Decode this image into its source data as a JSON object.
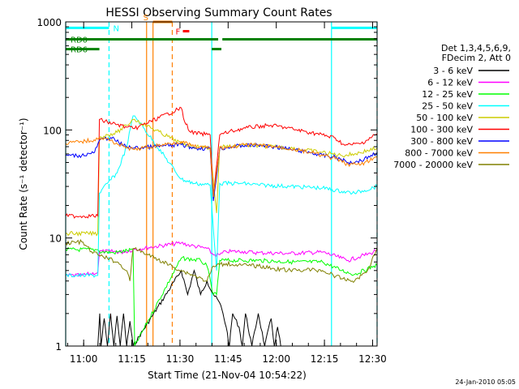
{
  "chart_data": {
    "type": "line",
    "title": "HESSI Observing Summary Count Rates",
    "xlabel": "Start Time (21-Nov-04 10:54:22)",
    "ylabel": "Count Rate (s⁻¹ detector⁻¹)",
    "yscale": "log",
    "ylim": [
      1,
      1000
    ],
    "xlim_minutes_after_start": [
      0,
      97
    ],
    "xticks": [
      {
        "label": "11:00",
        "t": 5.6
      },
      {
        "label": "11:15",
        "t": 20.6
      },
      {
        "label": "11:30",
        "t": 35.6
      },
      {
        "label": "11:45",
        "t": 50.6
      },
      {
        "label": "12:00",
        "t": 65.6
      },
      {
        "label": "12:15",
        "t": 80.6
      },
      {
        "label": "12:30",
        "t": 95.6
      }
    ],
    "yticks": [
      {
        "label": "1",
        "v": 1
      },
      {
        "label": "10",
        "v": 10
      },
      {
        "label": "100",
        "v": 100
      },
      {
        "label": "1000",
        "v": 1000
      }
    ],
    "legend_header": [
      "Det 1,3,4,5,6,9,",
      "FDecim 2, Att 0"
    ],
    "legend_position": "right",
    "series": [
      {
        "name": "3 - 6 keV",
        "color": "#000000",
        "points": [
          [
            10,
            1
          ],
          [
            10.6,
            2
          ],
          [
            11,
            1
          ],
          [
            12,
            1.8
          ],
          [
            13,
            1
          ],
          [
            14,
            2
          ],
          [
            15,
            1
          ],
          [
            16,
            1.9
          ],
          [
            17,
            1
          ],
          [
            18,
            2
          ],
          [
            19,
            1
          ],
          [
            20,
            1.7
          ],
          [
            21,
            1
          ],
          [
            36,
            5
          ],
          [
            38,
            3
          ],
          [
            40,
            5
          ],
          [
            42,
            3
          ],
          [
            44,
            4
          ],
          [
            46,
            3
          ],
          [
            48,
            2.5
          ],
          [
            49,
            2
          ],
          [
            50,
            1.5
          ],
          [
            51,
            1
          ],
          [
            52,
            2
          ],
          [
            54,
            1.5
          ],
          [
            55,
            1
          ],
          [
            56,
            2
          ],
          [
            58,
            1
          ],
          [
            60,
            2
          ],
          [
            62,
            1
          ],
          [
            64,
            1.8
          ],
          [
            65,
            1
          ],
          [
            66,
            1.5
          ],
          [
            67,
            1
          ]
        ]
      },
      {
        "name": "6 - 12 keV",
        "color": "#ff00ff",
        "points": [
          [
            0,
            4.5
          ],
          [
            5,
            4.5
          ],
          [
            10,
            4.8
          ],
          [
            10.5,
            7.5
          ],
          [
            14,
            7.5
          ],
          [
            18,
            7.4
          ],
          [
            21,
            7.8
          ],
          [
            36,
            9
          ],
          [
            39,
            8.5
          ],
          [
            44,
            8
          ],
          [
            46,
            7
          ],
          [
            48,
            7
          ],
          [
            50,
            7.5
          ],
          [
            55,
            7.5
          ],
          [
            60,
            7.3
          ],
          [
            70,
            7.2
          ],
          [
            80,
            7.4
          ],
          [
            86,
            6.5
          ],
          [
            88,
            6.2
          ],
          [
            92,
            6.8
          ],
          [
            95,
            7.2
          ],
          [
            97,
            7.8
          ]
        ]
      },
      {
        "name": "12 - 25 keV",
        "color": "#00ff00",
        "points": [
          [
            0,
            7.8
          ],
          [
            10,
            7.8
          ],
          [
            10.5,
            7.5
          ],
          [
            15,
            7.3
          ],
          [
            21,
            7.8
          ],
          [
            21.5,
            1
          ],
          [
            36,
            6.5
          ],
          [
            42,
            6.2
          ],
          [
            44,
            5.5
          ],
          [
            46,
            3
          ],
          [
            47,
            3
          ],
          [
            48,
            6.2
          ],
          [
            60,
            6.2
          ],
          [
            70,
            6
          ],
          [
            80,
            6
          ],
          [
            86,
            5
          ],
          [
            90,
            4.6
          ],
          [
            96,
            5.5
          ],
          [
            97,
            5.6
          ]
        ]
      },
      {
        "name": "25 - 50 keV",
        "color": "#00ffff",
        "points": [
          [
            0,
            4.5
          ],
          [
            10,
            4.5
          ],
          [
            10.5,
            26
          ],
          [
            13,
            32
          ],
          [
            16,
            40
          ],
          [
            19,
            70
          ],
          [
            21,
            135
          ],
          [
            21.5,
            135
          ],
          [
            36,
            35
          ],
          [
            40,
            32
          ],
          [
            45,
            31
          ],
          [
            47,
            5
          ],
          [
            48,
            32
          ],
          [
            55,
            32
          ],
          [
            60,
            31
          ],
          [
            70,
            30
          ],
          [
            80,
            29
          ],
          [
            86,
            27
          ],
          [
            90,
            26
          ],
          [
            97,
            30
          ]
        ]
      },
      {
        "name": "50 - 100 keV",
        "color": "#cccc00",
        "points": [
          [
            0,
            11
          ],
          [
            10,
            11
          ],
          [
            10.5,
            85
          ],
          [
            13,
            90
          ],
          [
            16,
            95
          ],
          [
            19,
            110
          ],
          [
            21,
            125
          ],
          [
            21.5,
            125
          ],
          [
            36,
            75
          ],
          [
            40,
            70
          ],
          [
            45,
            68
          ],
          [
            47,
            17
          ],
          [
            48,
            70
          ],
          [
            55,
            72
          ],
          [
            60,
            71
          ],
          [
            65,
            70
          ],
          [
            70,
            68
          ],
          [
            80,
            62
          ],
          [
            86,
            58
          ],
          [
            90,
            60
          ],
          [
            97,
            68
          ]
        ]
      },
      {
        "name": "100 - 300 keV",
        "color": "#ff0000",
        "points": [
          [
            0,
            16
          ],
          [
            10,
            16
          ],
          [
            10.5,
            125
          ],
          [
            13,
            118
          ],
          [
            16,
            112
          ],
          [
            19,
            106
          ],
          [
            21,
            103
          ],
          [
            21.5,
            103
          ],
          [
            36,
            160
          ],
          [
            37,
            120
          ],
          [
            39,
            95
          ],
          [
            42,
            92
          ],
          [
            45,
            90
          ],
          [
            46,
            25
          ],
          [
            48,
            90
          ],
          [
            52,
            98
          ],
          [
            56,
            104
          ],
          [
            60,
            108
          ],
          [
            64,
            110
          ],
          [
            68,
            106
          ],
          [
            72,
            100
          ],
          [
            76,
            95
          ],
          [
            80,
            90
          ],
          [
            84,
            84
          ],
          [
            87,
            72
          ],
          [
            92,
            75
          ],
          [
            97,
            92
          ]
        ]
      },
      {
        "name": "300 - 800 keV",
        "color": "#0000ff",
        "points": [
          [
            0,
            58
          ],
          [
            5,
            58
          ],
          [
            9,
            62
          ],
          [
            10.5,
            80
          ],
          [
            14,
            85
          ],
          [
            18,
            72
          ],
          [
            21,
            68
          ],
          [
            21.5,
            68
          ],
          [
            36,
            73
          ],
          [
            40,
            68
          ],
          [
            45,
            67
          ],
          [
            46,
            22
          ],
          [
            48,
            67
          ],
          [
            52,
            70
          ],
          [
            56,
            72
          ],
          [
            60,
            72
          ],
          [
            65,
            70
          ],
          [
            70,
            66
          ],
          [
            76,
            62
          ],
          [
            80,
            58
          ],
          [
            84,
            56
          ],
          [
            88,
            50
          ],
          [
            92,
            52
          ],
          [
            97,
            62
          ]
        ]
      },
      {
        "name": "800 - 7000 keV",
        "color": "#ff8000",
        "points": [
          [
            0,
            75
          ],
          [
            5,
            78
          ],
          [
            10,
            82
          ],
          [
            10.5,
            85
          ],
          [
            14,
            80
          ],
          [
            18,
            70
          ],
          [
            21,
            66
          ],
          [
            21.5,
            66
          ],
          [
            36,
            78
          ],
          [
            40,
            70
          ],
          [
            45,
            68
          ],
          [
            46,
            24
          ],
          [
            48,
            68
          ],
          [
            52,
            70
          ],
          [
            56,
            73
          ],
          [
            60,
            72
          ],
          [
            65,
            70
          ],
          [
            70,
            67
          ],
          [
            76,
            62
          ],
          [
            80,
            58
          ],
          [
            84,
            54
          ],
          [
            88,
            48
          ],
          [
            92,
            48
          ],
          [
            97,
            56
          ]
        ]
      },
      {
        "name": "7000 - 20000 keV",
        "color": "#808000",
        "points": [
          [
            0,
            9
          ],
          [
            5,
            9.2
          ],
          [
            8,
            7.5
          ],
          [
            10,
            7
          ],
          [
            13,
            6.5
          ],
          [
            16,
            6
          ],
          [
            19,
            5
          ],
          [
            20,
            4
          ],
          [
            21,
            8
          ],
          [
            21.5,
            8
          ],
          [
            36,
            5
          ],
          [
            40,
            4.5
          ],
          [
            44,
            4
          ],
          [
            46,
            5.5
          ],
          [
            50,
            5.8
          ],
          [
            55,
            5.6
          ],
          [
            60,
            5.5
          ],
          [
            65,
            5.2
          ],
          [
            70,
            5
          ],
          [
            75,
            5.1
          ],
          [
            80,
            5
          ],
          [
            86,
            4.2
          ],
          [
            90,
            4
          ],
          [
            94,
            5
          ],
          [
            97,
            8
          ]
        ]
      }
    ],
    "flags": [
      {
        "label": "N",
        "color": "#00ffff",
        "ranges": [
          [
            0,
            13.5
          ],
          [
            82.8,
            97
          ]
        ],
        "level": 880
      },
      {
        "label": "S",
        "color": "#ff8000",
        "ranges": [
          [
            27.2,
            33.2
          ]
        ],
        "level": 1000
      },
      {
        "label": "F",
        "color": "#ff0000",
        "ranges": [
          [
            36.5,
            38.5
          ]
        ],
        "level": 820
      },
      {
        "label": "RD0",
        "color": "#008000",
        "ranges": [
          [
            0,
            47.5
          ],
          [
            48.8,
            97
          ]
        ],
        "level": 690
      },
      {
        "label": "RD6",
        "color": "#008000",
        "ranges": [
          [
            0,
            10.5
          ],
          [
            45.5,
            48.5
          ]
        ],
        "level": 560
      }
    ],
    "vlines": [
      {
        "t": 0,
        "color": "#00ffff",
        "dashed": false
      },
      {
        "t": 13.5,
        "color": "#00ffff",
        "dashed": true
      },
      {
        "t": 25.2,
        "color": "#ff8000",
        "dashed": false
      },
      {
        "t": 27.2,
        "color": "#ff8000",
        "dashed": false
      },
      {
        "t": 33.2,
        "color": "#ff8000",
        "dashed": true
      },
      {
        "t": 45.5,
        "color": "#00ffff",
        "dashed": false
      },
      {
        "t": 82.8,
        "color": "#00ffff",
        "dashed": false
      },
      {
        "t": 97,
        "color": "#00ffff",
        "dashed": true
      }
    ],
    "footer_date": "24-Jan-2010 05:05"
  }
}
